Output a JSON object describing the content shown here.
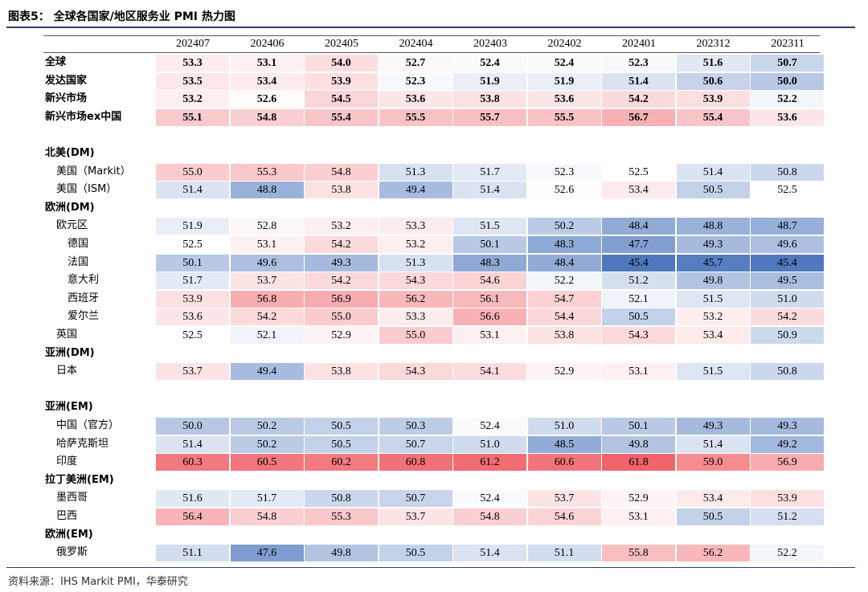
{
  "title": "图表5：  全球各国家/地区服务业 PMI 热力图",
  "source": "资料来源：IHS Markit PMI，华泰研究",
  "chart_data": {
    "type": "heatmap",
    "columns": [
      "202407",
      "202406",
      "202405",
      "202404",
      "202403",
      "202402",
      "202401",
      "202312",
      "202311"
    ],
    "rows": [
      {
        "label": "全球",
        "bold": true,
        "indent": 0,
        "values": [
          53.3,
          53.1,
          54.0,
          52.7,
          52.4,
          52.4,
          52.3,
          51.6,
          50.7
        ]
      },
      {
        "label": "发达国家",
        "bold": true,
        "indent": 0,
        "values": [
          53.5,
          53.4,
          53.9,
          52.3,
          51.9,
          51.9,
          51.4,
          50.6,
          50.0
        ]
      },
      {
        "label": "新兴市场",
        "bold": true,
        "indent": 0,
        "values": [
          53.2,
          52.6,
          54.5,
          53.6,
          53.8,
          53.6,
          54.2,
          53.9,
          52.2
        ]
      },
      {
        "label": "新兴市场ex中国",
        "bold": true,
        "indent": 0,
        "values": [
          55.1,
          54.8,
          55.4,
          55.5,
          55.7,
          55.5,
          56.7,
          55.4,
          53.6
        ]
      },
      {
        "spacer": true
      },
      {
        "label": "北美(DM)",
        "bold": true,
        "indent": 0,
        "header": true
      },
      {
        "label": "美国（Markit）",
        "bold": false,
        "indent": 1,
        "values": [
          55.0,
          55.3,
          54.8,
          51.3,
          51.7,
          52.3,
          52.5,
          51.4,
          50.8
        ]
      },
      {
        "label": "美国（ISM）",
        "bold": false,
        "indent": 1,
        "values": [
          51.4,
          48.8,
          53.8,
          49.4,
          51.4,
          52.6,
          53.4,
          50.5,
          52.5
        ]
      },
      {
        "label": "欧洲(DM)",
        "bold": true,
        "indent": 0,
        "header": true
      },
      {
        "label": "欧元区",
        "bold": false,
        "indent": 1,
        "values": [
          51.9,
          52.8,
          53.2,
          53.3,
          51.5,
          50.2,
          48.4,
          48.8,
          48.7
        ]
      },
      {
        "label": "德国",
        "bold": false,
        "indent": 2,
        "values": [
          52.5,
          53.1,
          54.2,
          53.2,
          50.1,
          48.3,
          47.7,
          49.3,
          49.6
        ]
      },
      {
        "label": "法国",
        "bold": false,
        "indent": 2,
        "values": [
          50.1,
          49.6,
          49.3,
          51.3,
          48.3,
          48.4,
          45.4,
          45.7,
          45.4
        ]
      },
      {
        "label": "意大利",
        "bold": false,
        "indent": 2,
        "values": [
          51.7,
          53.7,
          54.2,
          54.3,
          54.6,
          52.2,
          51.2,
          49.8,
          49.5
        ]
      },
      {
        "label": "西班牙",
        "bold": false,
        "indent": 2,
        "values": [
          53.9,
          56.8,
          56.9,
          56.2,
          56.1,
          54.7,
          52.1,
          51.5,
          51.0
        ]
      },
      {
        "label": "爱尔兰",
        "bold": false,
        "indent": 2,
        "values": [
          53.6,
          54.2,
          55.0,
          53.3,
          56.6,
          54.4,
          50.5,
          53.2,
          54.2
        ]
      },
      {
        "label": "英国",
        "bold": false,
        "indent": 1,
        "values": [
          52.5,
          52.1,
          52.9,
          55.0,
          53.1,
          53.8,
          54.3,
          53.4,
          50.9
        ]
      },
      {
        "label": "亚洲(DM)",
        "bold": true,
        "indent": 0,
        "header": true
      },
      {
        "label": "日本",
        "bold": false,
        "indent": 1,
        "values": [
          53.7,
          49.4,
          53.8,
          54.3,
          54.1,
          52.9,
          53.1,
          51.5,
          50.8
        ]
      },
      {
        "spacer": true
      },
      {
        "label": "亚洲(EM)",
        "bold": true,
        "indent": 0,
        "header": true
      },
      {
        "label": "中国（官方）",
        "bold": false,
        "indent": 1,
        "values": [
          50.0,
          50.2,
          50.5,
          50.3,
          52.4,
          51.0,
          50.1,
          49.3,
          49.3
        ]
      },
      {
        "label": "哈萨克斯坦",
        "bold": false,
        "indent": 1,
        "values": [
          51.4,
          50.2,
          50.5,
          50.7,
          51.0,
          48.5,
          49.8,
          51.4,
          49.2
        ]
      },
      {
        "label": "印度",
        "bold": false,
        "indent": 1,
        "values": [
          60.3,
          60.5,
          60.2,
          60.8,
          61.2,
          60.6,
          61.8,
          59.0,
          56.9
        ]
      },
      {
        "label": "拉丁美洲(EM)",
        "bold": true,
        "indent": 0,
        "header": true
      },
      {
        "label": "墨西哥",
        "bold": false,
        "indent": 1,
        "values": [
          51.6,
          51.7,
          50.8,
          50.7,
          52.4,
          53.7,
          52.9,
          53.4,
          53.9
        ]
      },
      {
        "label": "巴西",
        "bold": false,
        "indent": 1,
        "values": [
          56.4,
          54.8,
          55.3,
          53.7,
          54.8,
          54.6,
          53.1,
          50.5,
          51.2
        ]
      },
      {
        "label": "欧洲(EM)",
        "bold": true,
        "indent": 0,
        "header": true
      },
      {
        "label": "俄罗斯",
        "bold": false,
        "indent": 1,
        "values": [
          51.1,
          47.6,
          49.8,
          50.5,
          51.4,
          51.1,
          55.8,
          56.2,
          52.2
        ]
      }
    ],
    "color_scale": {
      "low": "#4f78be",
      "mid": "#ffffff",
      "high": "#f0636b",
      "mid_value": 52.5
    }
  }
}
